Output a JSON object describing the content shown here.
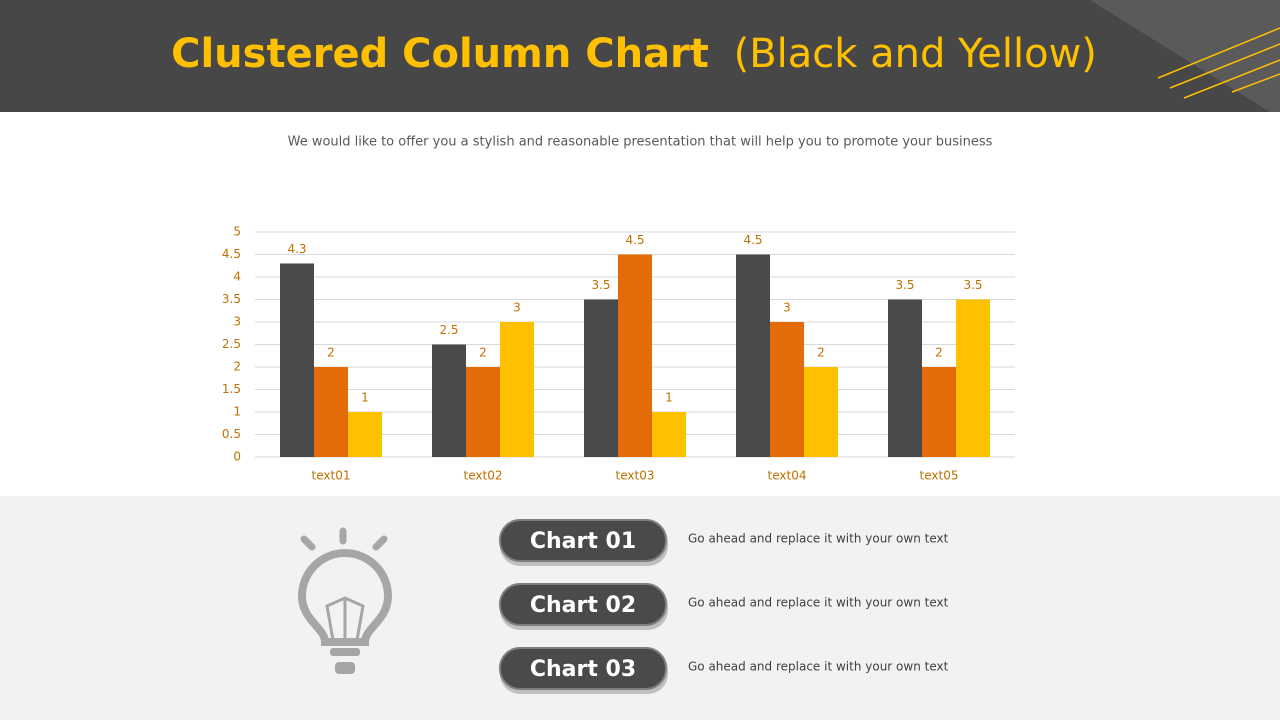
{
  "header": {
    "title": "Clustered Column Chart",
    "title_note": "(Black and Yellow)"
  },
  "subtitle": "We would like to offer you a stylish and reasonable presentation that will help you to promote your business",
  "chart_data": {
    "type": "bar",
    "categories": [
      "text01",
      "text02",
      "text03",
      "text04",
      "text05"
    ],
    "series": [
      {
        "color": "#4a4a4a",
        "values": [
          4.3,
          2.5,
          3.5,
          4.5,
          3.5
        ]
      },
      {
        "color": "#e36c09",
        "values": [
          2,
          2,
          4.5,
          3,
          2
        ]
      },
      {
        "color": "#ffc000",
        "values": [
          1,
          3,
          1,
          2,
          3.5
        ]
      }
    ],
    "ylim": [
      0,
      5
    ],
    "yticks": [
      0,
      0.5,
      1,
      1.5,
      2,
      2.5,
      3,
      3.5,
      4,
      4.5,
      5
    ],
    "grid": true
  },
  "items": [
    {
      "label": "Chart 01",
      "text": "Go ahead and replace it with your own text"
    },
    {
      "label": "Chart 02",
      "text": "Go ahead and replace it with your own text"
    },
    {
      "label": "Chart 03",
      "text": "Go ahead and replace it with your own text"
    }
  ]
}
